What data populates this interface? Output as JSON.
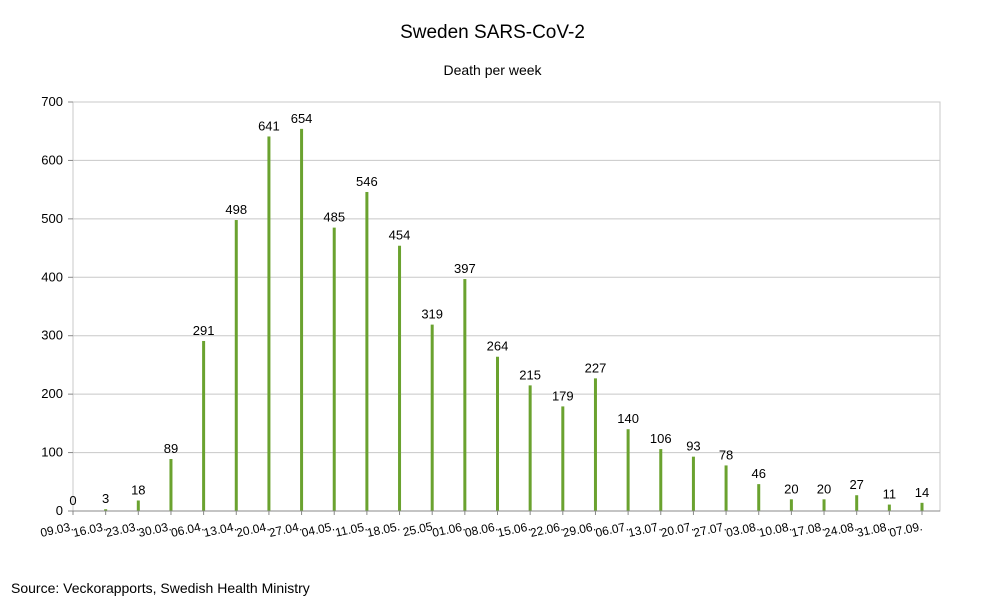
{
  "chart_data": {
    "type": "bar",
    "title": "Sweden SARS-CoV-2",
    "subtitle": "Death per week",
    "xlabel": "",
    "ylabel": "",
    "ylim": [
      0,
      700
    ],
    "yticks": [
      0,
      100,
      200,
      300,
      400,
      500,
      600,
      700
    ],
    "grid": true,
    "legend": "none",
    "bar_color": "#6aa22f",
    "categories": [
      "09.03.",
      "16.03.",
      "23.03.",
      "30.03.",
      "06.04.",
      "13.04.",
      "20.04.",
      "27.04.",
      "04.05.",
      "11.05.",
      "18.05.",
      "25.05",
      "01.06.",
      "08.06.",
      "15.06.",
      "22.06.",
      "29.06.",
      "06.07.",
      "13.07.",
      "20.07.",
      "27.07.",
      "03.08.",
      "10.08.",
      "17.08.",
      "24.08.",
      "31.08.",
      "07.09."
    ],
    "values": [
      0,
      3,
      18,
      89,
      291,
      498,
      641,
      654,
      485,
      546,
      454,
      319,
      397,
      264,
      215,
      179,
      227,
      140,
      106,
      93,
      78,
      46,
      20,
      20,
      27,
      11,
      14
    ]
  },
  "footer": {
    "source": "Source: Veckorapports, Swedish Health Ministry"
  }
}
